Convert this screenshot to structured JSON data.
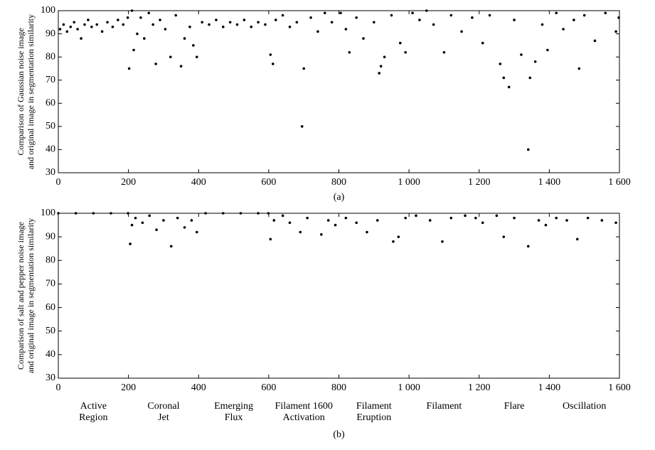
{
  "chart_data": [
    {
      "type": "scatter",
      "label": "(a)",
      "ylabel": [
        "Comparison of Gaussian noise image",
        "and original image in segmentation similarity"
      ],
      "color": "#000000",
      "xlim": [
        0,
        1600
      ],
      "ylim": [
        30,
        100
      ],
      "xticks": [
        0,
        200,
        400,
        600,
        800,
        {
          "value": 1000,
          "label": "1 000"
        },
        {
          "value": 1200,
          "label": "1 200"
        },
        {
          "value": 1400,
          "label": "1 400"
        },
        {
          "value": 1600,
          "label": "1 600"
        }
      ],
      "yticks": [
        30,
        40,
        50,
        60,
        70,
        80,
        90,
        100
      ],
      "x": [
        5,
        15,
        25,
        35,
        45,
        55,
        65,
        75,
        85,
        95,
        110,
        125,
        140,
        155,
        170,
        185,
        198,
        202,
        210,
        215,
        225,
        235,
        245,
        258,
        270,
        278,
        290,
        305,
        320,
        335,
        350,
        360,
        375,
        385,
        395,
        410,
        430,
        450,
        470,
        490,
        510,
        530,
        550,
        570,
        590,
        605,
        612,
        620,
        640,
        660,
        680,
        695,
        700,
        720,
        740,
        760,
        780,
        805,
        820,
        830,
        850,
        870,
        900,
        915,
        920,
        930,
        950,
        975,
        990,
        1010,
        1030,
        1050,
        1070,
        1100,
        1120,
        1150,
        1180,
        1210,
        1230,
        1260,
        1270,
        1285,
        1300,
        1320,
        1340,
        1345,
        1360,
        1380,
        1395,
        1420,
        1440,
        1470,
        1485,
        1500,
        1530,
        1560,
        1590,
        1598
      ],
      "y": [
        92,
        94,
        91,
        93,
        95,
        92,
        88,
        94,
        96,
        93,
        94,
        91,
        95,
        93,
        96,
        94,
        97,
        75,
        100,
        83,
        90,
        97,
        88,
        99,
        94,
        77,
        96,
        92,
        80,
        98,
        76,
        88,
        93,
        85,
        80,
        95,
        94,
        96,
        93,
        95,
        94,
        96,
        93,
        95,
        94,
        81,
        77,
        96,
        98,
        93,
        95,
        50,
        75,
        97,
        91,
        99,
        95,
        99,
        92,
        82,
        97,
        88,
        95,
        73,
        76,
        80,
        98,
        86,
        82,
        99,
        96,
        100,
        94,
        82,
        98,
        91,
        97,
        86,
        98,
        77,
        71,
        67,
        96,
        81,
        40,
        71,
        78,
        94,
        83,
        99,
        92,
        96,
        75,
        98,
        87,
        99,
        91,
        97
      ]
    },
    {
      "type": "scatter",
      "label": "(b)",
      "ylabel": [
        "Comparison of salt and pepper noise image",
        "and original image in segmentation similarity"
      ],
      "color": "#000000",
      "xlim": [
        0,
        1600
      ],
      "ylim": [
        30,
        100
      ],
      "xticks": [
        0,
        200,
        400,
        600,
        800,
        {
          "value": 1000,
          "label": "1 000"
        },
        {
          "value": 1200,
          "label": "1 200"
        },
        {
          "value": 1400,
          "label": "1 400"
        },
        {
          "value": 1600,
          "label": "1 600"
        }
      ],
      "yticks": [
        30,
        40,
        50,
        60,
        70,
        80,
        90,
        100
      ],
      "x": [
        0,
        50,
        100,
        150,
        199,
        205,
        210,
        220,
        240,
        260,
        280,
        300,
        322,
        340,
        360,
        380,
        395,
        420,
        470,
        520,
        570,
        599,
        605,
        615,
        640,
        660,
        690,
        710,
        750,
        770,
        790,
        820,
        850,
        880,
        910,
        955,
        970,
        990,
        1020,
        1060,
        1095,
        1120,
        1160,
        1190,
        1210,
        1250,
        1270,
        1300,
        1340,
        1370,
        1390,
        1420,
        1450,
        1480,
        1510,
        1550,
        1590
      ],
      "y": [
        100,
        100,
        100,
        100,
        100,
        87,
        95,
        98,
        96,
        99,
        93,
        97,
        86,
        98,
        94,
        97,
        92,
        100,
        100,
        100,
        100,
        100,
        89,
        97,
        99,
        96,
        92,
        98,
        91,
        97,
        95,
        98,
        96,
        92,
        97,
        88,
        90,
        98,
        99,
        97,
        88,
        98,
        99,
        98,
        96,
        99,
        90,
        98,
        86,
        97,
        95,
        98,
        97,
        89,
        98,
        97,
        96
      ],
      "segments": [
        [
          "Active",
          "Region"
        ],
        [
          "Coronal",
          "Jet"
        ],
        [
          "Emerging",
          "Flux"
        ],
        [
          "Filament  1600",
          "Activation"
        ],
        [
          "Filament",
          "Eruption"
        ],
        [
          "Filament"
        ],
        [
          "Flare"
        ],
        [
          "Oscillation"
        ]
      ]
    }
  ]
}
